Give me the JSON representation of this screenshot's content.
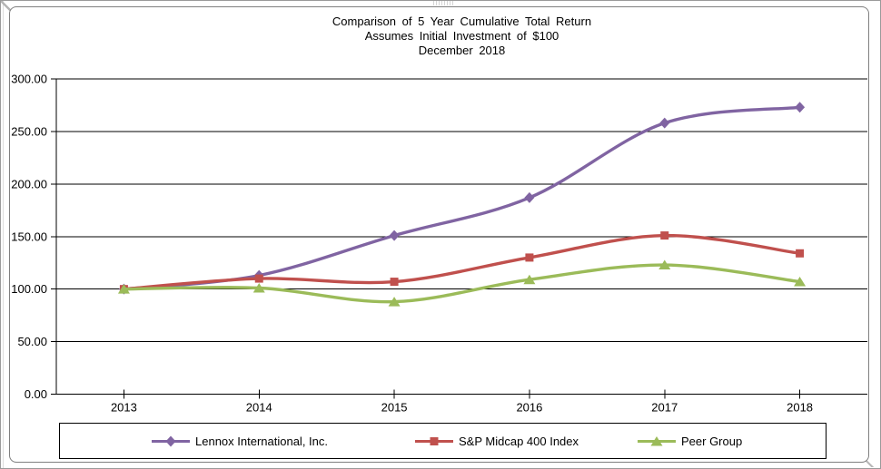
{
  "chart_data": {
    "type": "line",
    "title": "Comparison of 5 Year Cumulative Total Return",
    "subtitle": "Assumes Initial Investment of $100",
    "date_label": "December 2018",
    "categories": [
      "2013",
      "2014",
      "2015",
      "2016",
      "2017",
      "2018"
    ],
    "series": [
      {
        "name": "Lennox International, Inc.",
        "color": "#8064A2",
        "marker": "diamond",
        "values": [
          100,
          113,
          151,
          187,
          258,
          273
        ]
      },
      {
        "name": "S&P Midcap 400 Index",
        "color": "#C0504D",
        "marker": "square",
        "values": [
          100,
          110,
          107,
          130,
          151,
          134
        ]
      },
      {
        "name": "Peer Group",
        "color": "#9BBB59",
        "marker": "triangle",
        "values": [
          100,
          101,
          88,
          109,
          123,
          107
        ]
      }
    ],
    "ylim": [
      0,
      300
    ],
    "ytick_step": 50,
    "ytick_labels": [
      "0.00",
      "50.00",
      "100.00",
      "150.00",
      "200.00",
      "250.00",
      "300.00"
    ],
    "grid": true,
    "line_smoothing": true,
    "legend_position": "bottom",
    "axis_color": "#000000",
    "gridline_color": "#000000"
  }
}
